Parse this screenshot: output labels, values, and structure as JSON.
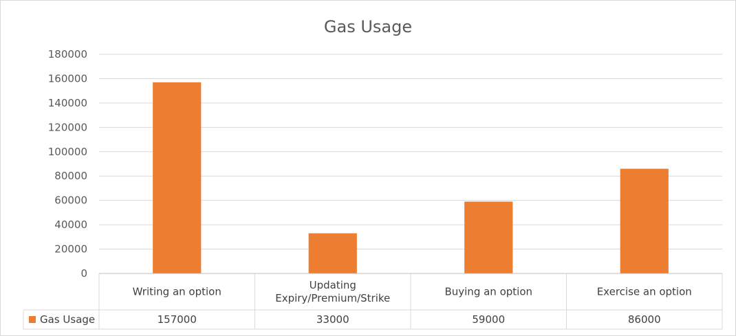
{
  "chart_data": {
    "type": "bar",
    "title": "Gas Usage",
    "categories": [
      [
        "Writing an option"
      ],
      [
        "Updating",
        "Expiry/Premium/Strike"
      ],
      [
        "Buying an option"
      ],
      [
        "Exercise an option"
      ]
    ],
    "series": [
      {
        "name": "Gas Usage",
        "values": [
          157000,
          33000,
          59000,
          86000
        ],
        "color": "#ED7D31"
      }
    ],
    "ylim": [
      0,
      180000
    ],
    "yticks": [
      0,
      20000,
      40000,
      60000,
      80000,
      100000,
      120000,
      140000,
      160000,
      180000
    ],
    "grid": true,
    "legend": "data-table"
  }
}
